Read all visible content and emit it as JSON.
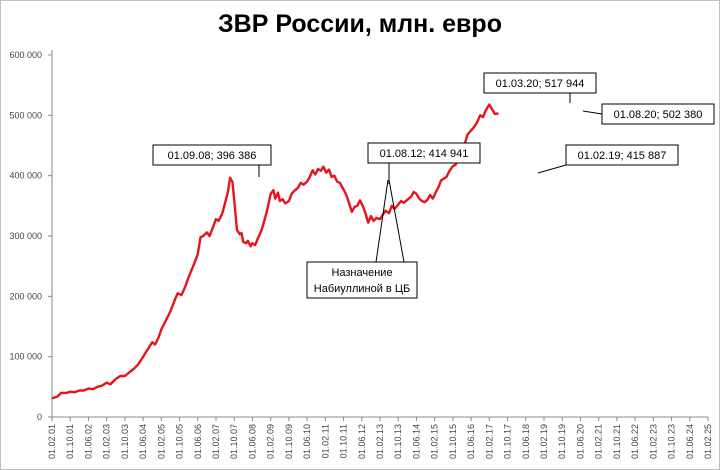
{
  "chart_data": {
    "type": "line",
    "title": "ЗВР России, млн. евро",
    "xlabel": "",
    "ylabel": "",
    "ylim": [
      0,
      600000
    ],
    "yticks": [
      0,
      100000,
      200000,
      300000,
      400000,
      500000,
      600000
    ],
    "ytick_labels": [
      "0",
      "100 000",
      "200 000",
      "300 000",
      "400 000",
      "500 000",
      "600 000"
    ],
    "xtick_labels": [
      "01.02.01",
      "01.10.01",
      "01.06.02",
      "01.02.03",
      "01.10.03",
      "01.06.04",
      "01.02.05",
      "01.10.05",
      "01.06.06",
      "01.02.07",
      "01.10.07",
      "01.06.08",
      "01.02.09",
      "01.10.09",
      "01.06.10",
      "01.02.11",
      "01.10.11",
      "01.06.12",
      "01.02.13",
      "01.10.13",
      "01.06.14",
      "01.02.15",
      "01.10.15",
      "01.06.16",
      "01.02.17",
      "01.10.17",
      "01.06.18",
      "01.02.19",
      "01.10.19",
      "01.06.20",
      "01.02.21",
      "01.10.21",
      "01.06.22",
      "01.02.23",
      "01.10.23",
      "01.06.24",
      "01.02.25"
    ],
    "grid": false,
    "legend": "none",
    "series_color": "#e8141b",
    "series": [
      {
        "points": [
          [
            0,
            31000
          ],
          [
            0.6,
            34000
          ],
          [
            1,
            40000
          ],
          [
            1.6,
            40000
          ],
          [
            2,
            42000
          ],
          [
            2.5,
            41000
          ],
          [
            3,
            44000
          ],
          [
            3.5,
            44000
          ],
          [
            4,
            47000
          ],
          [
            4.5,
            46000
          ],
          [
            5,
            50000
          ],
          [
            5.5,
            52000
          ],
          [
            6,
            57000
          ],
          [
            6.4,
            54000
          ],
          [
            7,
            63000
          ],
          [
            7.5,
            68000
          ],
          [
            8,
            68000
          ],
          [
            8.4,
            73000
          ],
          [
            9,
            80000
          ],
          [
            9.5,
            88000
          ],
          [
            10,
            100000
          ],
          [
            10.5,
            112000
          ],
          [
            11,
            124000
          ],
          [
            11.3,
            120000
          ],
          [
            11.7,
            132000
          ],
          [
            12,
            145000
          ],
          [
            12.5,
            160000
          ],
          [
            13,
            175000
          ],
          [
            13.5,
            195000
          ],
          [
            13.8,
            205000
          ],
          [
            14.2,
            202000
          ],
          [
            14.6,
            215000
          ],
          [
            15,
            232000
          ],
          [
            15.5,
            250000
          ],
          [
            16,
            270000
          ],
          [
            16.3,
            298000
          ],
          [
            16.6,
            300000
          ],
          [
            17,
            306000
          ],
          [
            17.3,
            300000
          ],
          [
            17.7,
            316000
          ],
          [
            18,
            328000
          ],
          [
            18.3,
            325000
          ],
          [
            18.7,
            338000
          ],
          [
            19,
            355000
          ],
          [
            19.3,
            372000
          ],
          [
            19.55,
            396386
          ],
          [
            19.8,
            390000
          ],
          [
            20,
            360000
          ],
          [
            20.3,
            310000
          ],
          [
            20.6,
            303000
          ],
          [
            20.8,
            305000
          ],
          [
            21,
            290000
          ],
          [
            21.3,
            288000
          ],
          [
            21.5,
            292000
          ],
          [
            21.8,
            283000
          ],
          [
            22,
            288000
          ],
          [
            22.3,
            285000
          ],
          [
            22.6,
            296000
          ],
          [
            23,
            310000
          ],
          [
            23.3,
            325000
          ],
          [
            23.6,
            342000
          ],
          [
            24,
            370000
          ],
          [
            24.3,
            376000
          ],
          [
            24.5,
            362000
          ],
          [
            24.8,
            372000
          ],
          [
            25,
            358000
          ],
          [
            25.3,
            361000
          ],
          [
            25.6,
            354000
          ],
          [
            26,
            358000
          ],
          [
            26.3,
            370000
          ],
          [
            26.6,
            375000
          ],
          [
            27,
            380000
          ],
          [
            27.3,
            388000
          ],
          [
            27.6,
            385000
          ],
          [
            28,
            390000
          ],
          [
            28.3,
            398000
          ],
          [
            28.6,
            409000
          ],
          [
            28.9,
            402000
          ],
          [
            29.2,
            411000
          ],
          [
            29.5,
            408000
          ],
          [
            29.8,
            414941
          ],
          [
            30.1,
            405000
          ],
          [
            30.4,
            410000
          ],
          [
            30.7,
            398000
          ],
          [
            31,
            400000
          ],
          [
            31.3,
            390000
          ],
          [
            31.6,
            388000
          ],
          [
            32,
            377000
          ],
          [
            32.3,
            368000
          ],
          [
            32.6,
            355000
          ],
          [
            32.9,
            340000
          ],
          [
            33.2,
            348000
          ],
          [
            33.5,
            350000
          ],
          [
            33.8,
            359000
          ],
          [
            34.1,
            350000
          ],
          [
            34.4,
            338000
          ],
          [
            34.7,
            322000
          ],
          [
            35,
            333000
          ],
          [
            35.3,
            325000
          ],
          [
            35.6,
            330000
          ],
          [
            36,
            328000
          ],
          [
            36.3,
            335000
          ],
          [
            36.6,
            342000
          ],
          [
            37,
            338000
          ],
          [
            37.3,
            350000
          ],
          [
            37.6,
            345000
          ],
          [
            38,
            352000
          ],
          [
            38.3,
            358000
          ],
          [
            38.6,
            355000
          ],
          [
            39,
            360000
          ],
          [
            39.4,
            365000
          ],
          [
            39.7,
            373000
          ],
          [
            40,
            370000
          ],
          [
            40.3,
            362000
          ],
          [
            40.6,
            358000
          ],
          [
            40.9,
            356000
          ],
          [
            41.2,
            360000
          ],
          [
            41.5,
            368000
          ],
          [
            41.8,
            362000
          ],
          [
            42.1,
            372000
          ],
          [
            42.4,
            380000
          ],
          [
            42.7,
            392000
          ],
          [
            43,
            395000
          ],
          [
            43.3,
            398000
          ],
          [
            43.6,
            407000
          ],
          [
            44,
            415887
          ],
          [
            44.3,
            418000
          ],
          [
            44.6,
            428000
          ],
          [
            45,
            440000
          ],
          [
            45.3,
            452000
          ],
          [
            45.6,
            468000
          ],
          [
            46,
            475000
          ],
          [
            46.3,
            480000
          ],
          [
            46.6,
            487000
          ],
          [
            47,
            500000
          ],
          [
            47.3,
            497000
          ],
          [
            47.6,
            508000
          ],
          [
            48,
            517944
          ],
          [
            48.3,
            510000
          ],
          [
            48.6,
            502380
          ],
          [
            49,
            503000
          ]
        ]
      }
    ],
    "annotations": [
      {
        "label": "01.09.08; 396 386"
      },
      {
        "label": "01.08.12; 414 941"
      },
      {
        "label": "01.03.20; 517 944"
      },
      {
        "label": "01.08.20; 502 380"
      },
      {
        "label": "01.02.19; 415 887"
      },
      {
        "label_line1": "Назначение",
        "label_line2": "Набиуллиной в ЦБ"
      }
    ]
  }
}
